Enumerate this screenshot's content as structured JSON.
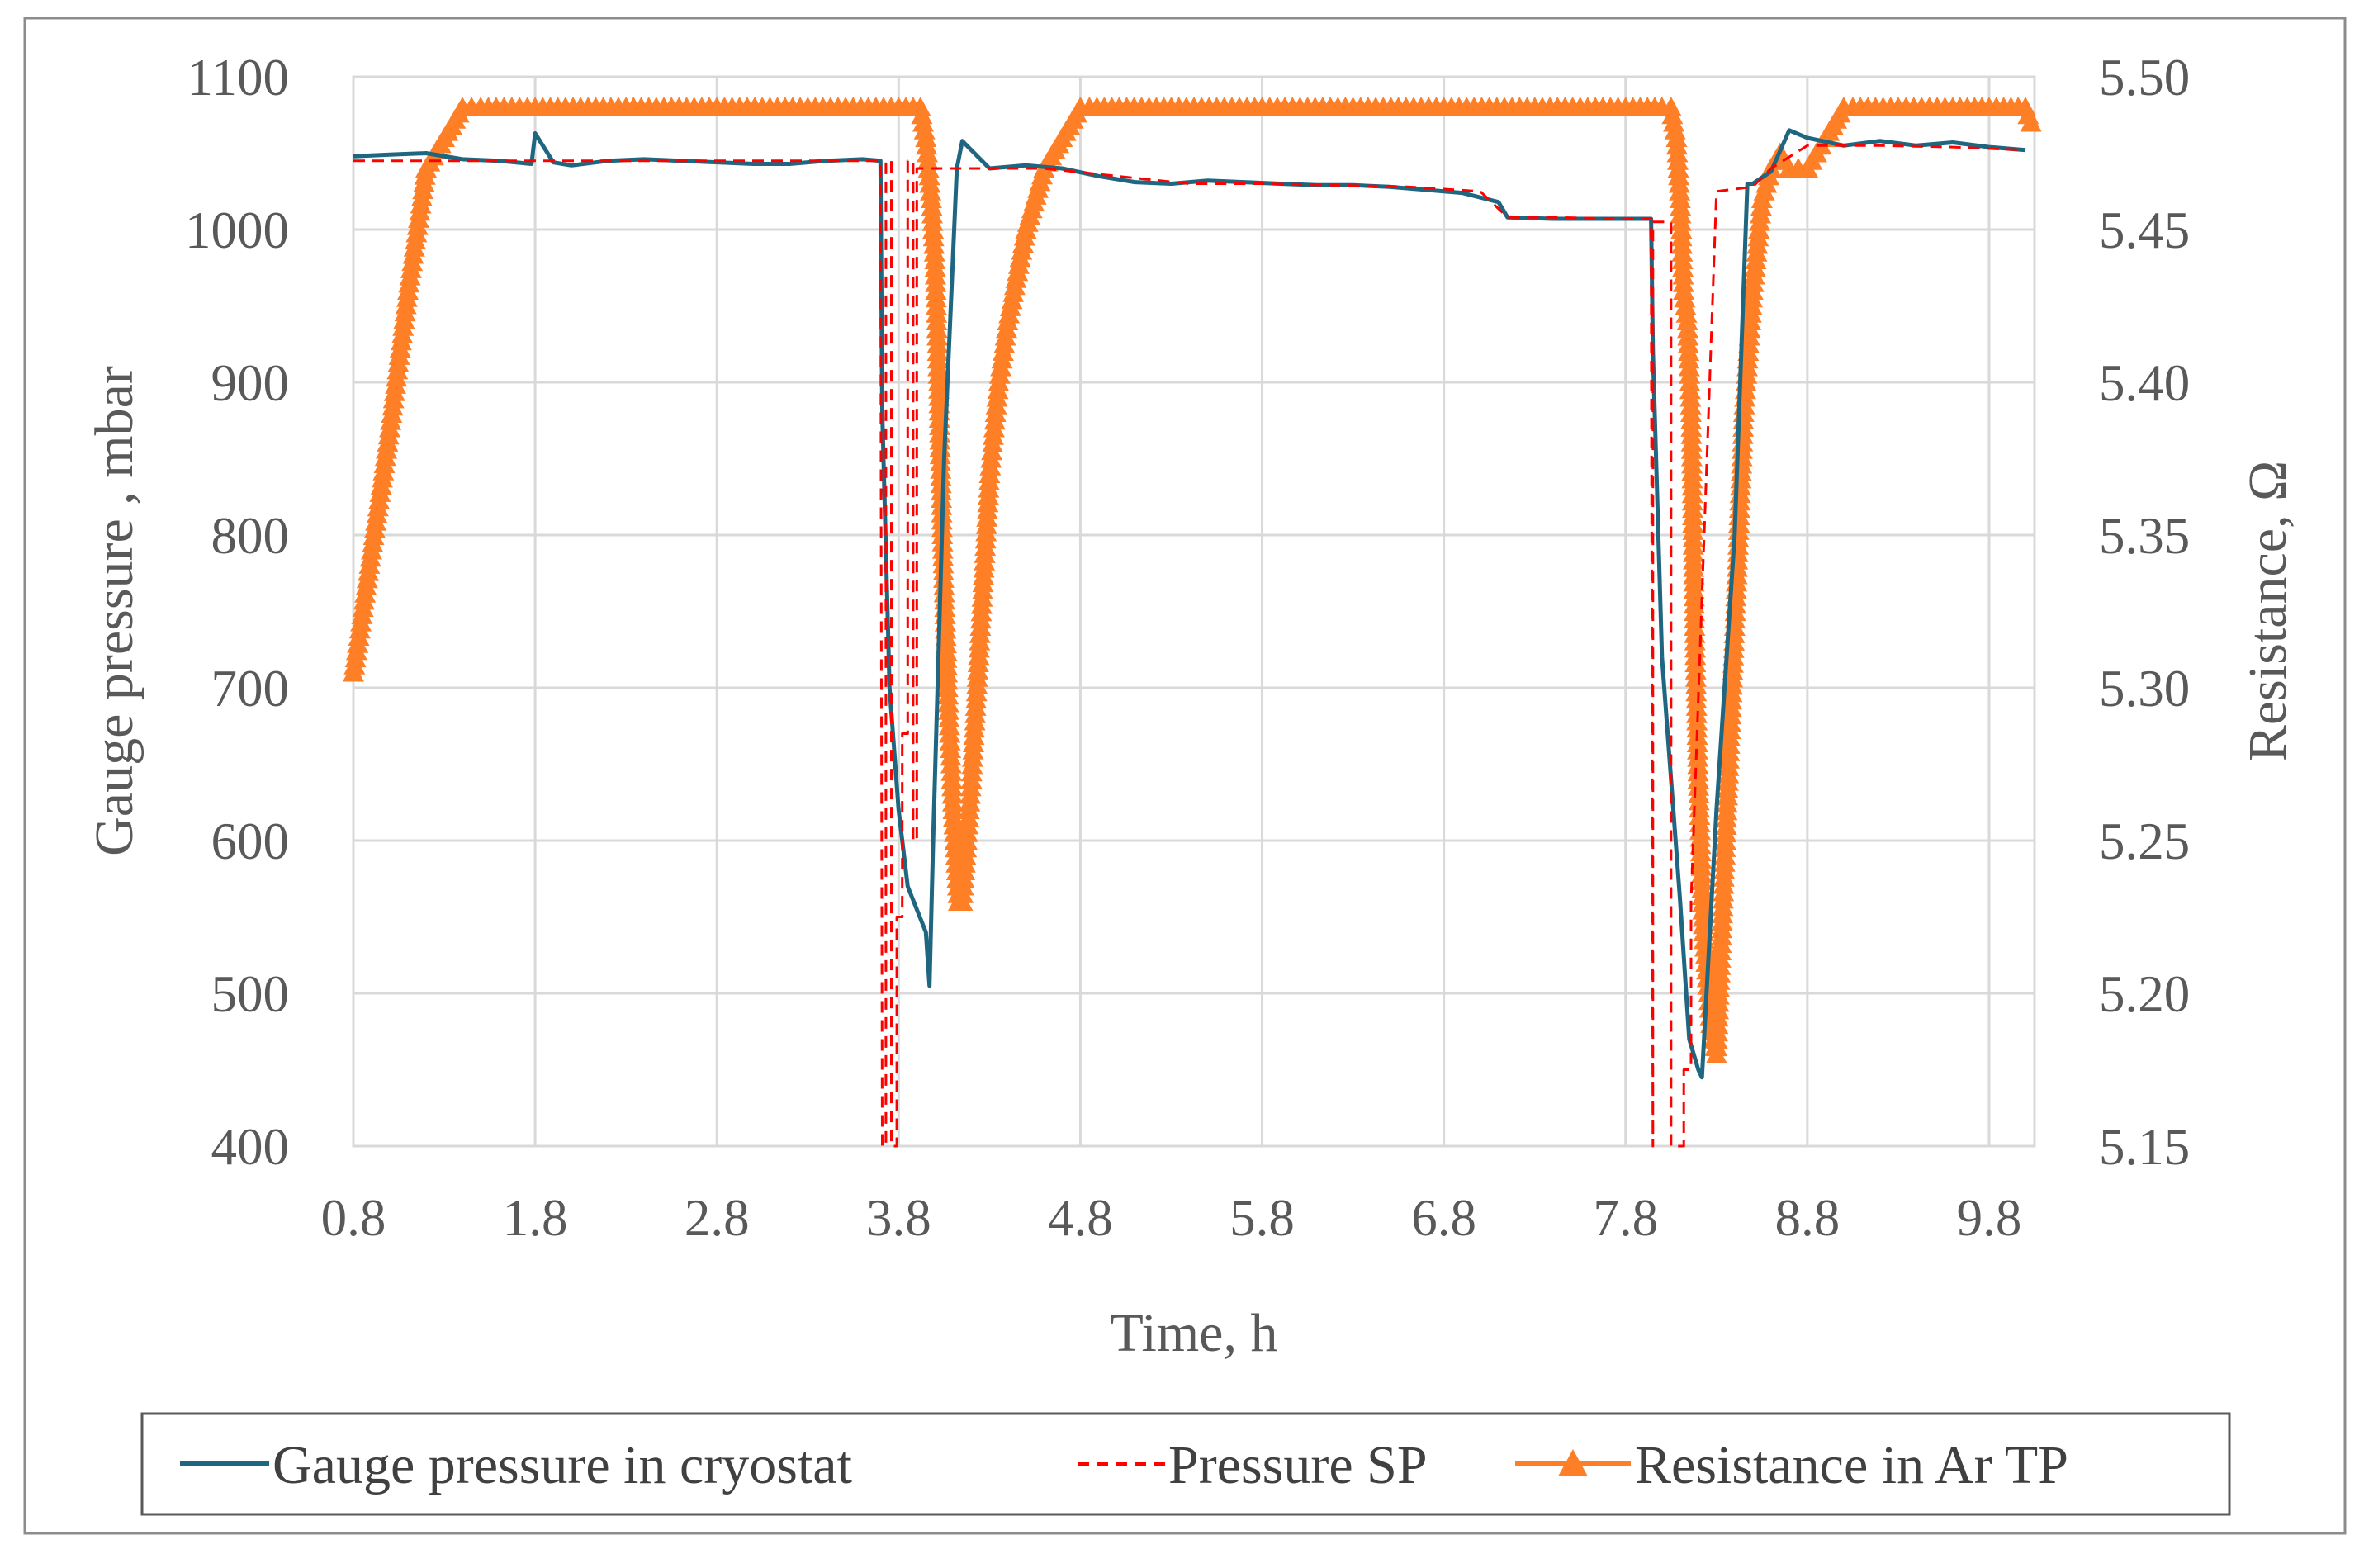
{
  "chart_data": {
    "type": "line",
    "title": "",
    "xlabel": "Time, h",
    "ylabel_left": "Gauge pressure , mbar",
    "ylabel_right": "Resistance, Ω",
    "xlim": [
      0.8,
      10.05
    ],
    "ylim_left": [
      400,
      1100
    ],
    "ylim_right": [
      5.15,
      5.5
    ],
    "x_ticks": [
      0.8,
      1.8,
      2.8,
      3.8,
      4.8,
      5.8,
      6.8,
      7.8,
      8.8,
      9.8
    ],
    "x_tick_labels": [
      "0.8",
      "1.8",
      "2.8",
      "3.8",
      "4.8",
      "5.8",
      "6.8",
      "7.8",
      "8.8",
      "9.8"
    ],
    "y_left_ticks": [
      400,
      500,
      600,
      700,
      800,
      900,
      1000,
      1100
    ],
    "y_left_tick_labels": [
      "400",
      "500",
      "600",
      "700",
      "800",
      "900",
      "1000",
      "1100"
    ],
    "y_right_ticks": [
      5.15,
      5.2,
      5.25,
      5.3,
      5.35,
      5.4,
      5.45,
      5.5
    ],
    "y_right_tick_labels": [
      "5.15",
      "5.20",
      "5.25",
      "5.30",
      "5.35",
      "5.40",
      "5.45",
      "5.50"
    ],
    "grid": true,
    "legend_position": "bottom",
    "series": [
      {
        "name": "Gauge pressure in cryostat",
        "axis": "left",
        "style": "solid",
        "color": "#1f6680",
        "x": [
          0.8,
          1.0,
          1.2,
          1.4,
          1.6,
          1.78,
          1.8,
          1.9,
          2.0,
          2.2,
          2.4,
          2.6,
          2.8,
          3.0,
          3.2,
          3.4,
          3.6,
          3.7,
          3.71,
          3.75,
          3.8,
          3.85,
          3.9,
          3.95,
          3.97,
          3.99,
          4.05,
          4.12,
          4.15,
          4.3,
          4.5,
          4.7,
          4.9,
          5.1,
          5.3,
          5.5,
          5.7,
          5.9,
          6.1,
          6.3,
          6.5,
          6.7,
          6.9,
          7.1,
          7.15,
          7.4,
          7.6,
          7.8,
          7.94,
          7.95,
          8.0,
          8.1,
          8.15,
          8.2,
          8.22,
          8.3,
          8.4,
          8.47,
          8.5,
          8.6,
          8.7,
          8.8,
          9.0,
          9.2,
          9.4,
          9.6,
          9.8,
          10.0
        ],
        "values": [
          1048,
          1049,
          1050,
          1046,
          1045,
          1043,
          1063,
          1044,
          1042,
          1045,
          1046,
          1045,
          1044,
          1043,
          1043,
          1045,
          1046,
          1045,
          880,
          700,
          620,
          570,
          555,
          540,
          505,
          600,
          850,
          1040,
          1058,
          1040,
          1042,
          1040,
          1035,
          1031,
          1030,
          1032,
          1031,
          1030,
          1029,
          1029,
          1028,
          1026,
          1024,
          1018,
          1008,
          1007,
          1007,
          1007,
          1007,
          920,
          720,
          560,
          470,
          450,
          445,
          620,
          800,
          1030,
          1030,
          1038,
          1065,
          1060,
          1055,
          1058,
          1055,
          1057,
          1054,
          1052
        ]
      },
      {
        "name": "Pressure SP",
        "axis": "left",
        "style": "dashed",
        "color": "#ff0000",
        "x": [
          0.8,
          1.2,
          1.6,
          2.0,
          2.4,
          2.8,
          3.2,
          3.6,
          3.7,
          3.71,
          3.73,
          3.73,
          3.76,
          3.76,
          3.79,
          3.79,
          3.82,
          3.82,
          3.85,
          3.85,
          3.88,
          3.88,
          3.9,
          3.9,
          4.0,
          4.2,
          4.6,
          5.0,
          5.4,
          5.8,
          6.2,
          6.6,
          7.0,
          7.15,
          7.4,
          7.8,
          7.94,
          7.95,
          7.95,
          8.05,
          8.05,
          8.12,
          8.12,
          8.16,
          8.16,
          8.3,
          8.5,
          8.6,
          8.8,
          9.2,
          9.6,
          10.0
        ],
        "values": [
          1045,
          1045,
          1045,
          1045,
          1045,
          1045,
          1045,
          1045,
          1045,
          400,
          400,
          1045,
          1045,
          400,
          400,
          550,
          550,
          670,
          670,
          1045,
          1045,
          600,
          600,
          1040,
          1040,
          1040,
          1040,
          1035,
          1030,
          1030,
          1029,
          1028,
          1025,
          1008,
          1008,
          1007,
          1007,
          400,
          1005,
          1005,
          400,
          400,
          450,
          450,
          560,
          1025,
          1028,
          1040,
          1055,
          1055,
          1054,
          1052
        ]
      },
      {
        "name": "Resistance in Ar TP",
        "axis": "right",
        "style": "solid-triangle-markers",
        "color": "#ff7f27",
        "x": [
          0.8,
          0.9,
          1.0,
          1.1,
          1.2,
          1.3,
          1.4,
          1.5,
          1.8,
          2.3,
          2.8,
          3.3,
          3.8,
          3.92,
          3.95,
          3.98,
          4.0,
          4.02,
          4.04,
          4.07,
          4.1,
          4.13,
          4.15,
          4.2,
          4.25,
          4.3,
          4.35,
          4.4,
          4.5,
          4.6,
          4.7,
          4.8,
          4.85,
          5.3,
          5.8,
          6.3,
          6.8,
          7.3,
          7.8,
          8.0,
          8.05,
          8.08,
          8.1,
          8.12,
          8.14,
          8.16,
          8.18,
          8.2,
          8.23,
          8.27,
          8.3,
          8.35,
          8.4,
          8.45,
          8.5,
          8.55,
          8.6,
          8.65,
          8.7,
          8.75,
          8.8,
          8.85,
          8.9,
          9.0,
          9.05,
          9.3,
          9.6,
          9.8,
          10.0,
          10.03
        ],
        "values": [
          5.305,
          5.345,
          5.385,
          5.43,
          5.47,
          5.48,
          5.49,
          5.49,
          5.49,
          5.49,
          5.49,
          5.49,
          5.49,
          5.49,
          5.48,
          5.46,
          5.44,
          5.4,
          5.35,
          5.3,
          5.26,
          5.23,
          5.23,
          5.27,
          5.32,
          5.37,
          5.4,
          5.42,
          5.45,
          5.47,
          5.48,
          5.49,
          5.49,
          5.49,
          5.49,
          5.49,
          5.49,
          5.49,
          5.49,
          5.49,
          5.49,
          5.48,
          5.46,
          5.43,
          5.42,
          5.39,
          5.32,
          5.27,
          5.22,
          5.19,
          5.18,
          5.25,
          5.32,
          5.39,
          5.43,
          5.46,
          5.47,
          5.475,
          5.47,
          5.47,
          5.47,
          5.475,
          5.48,
          5.49,
          5.49,
          5.49,
          5.49,
          5.49,
          5.49,
          5.485
        ]
      }
    ],
    "legend": [
      {
        "label": "Gauge pressure in cryostat",
        "marker": "line",
        "color": "#1f6680"
      },
      {
        "label": "Pressure SP",
        "marker": "dashed",
        "color": "#ff0000"
      },
      {
        "label": "Resistance in Ar TP",
        "marker": "line-triangle",
        "color": "#ff7f27"
      }
    ]
  }
}
